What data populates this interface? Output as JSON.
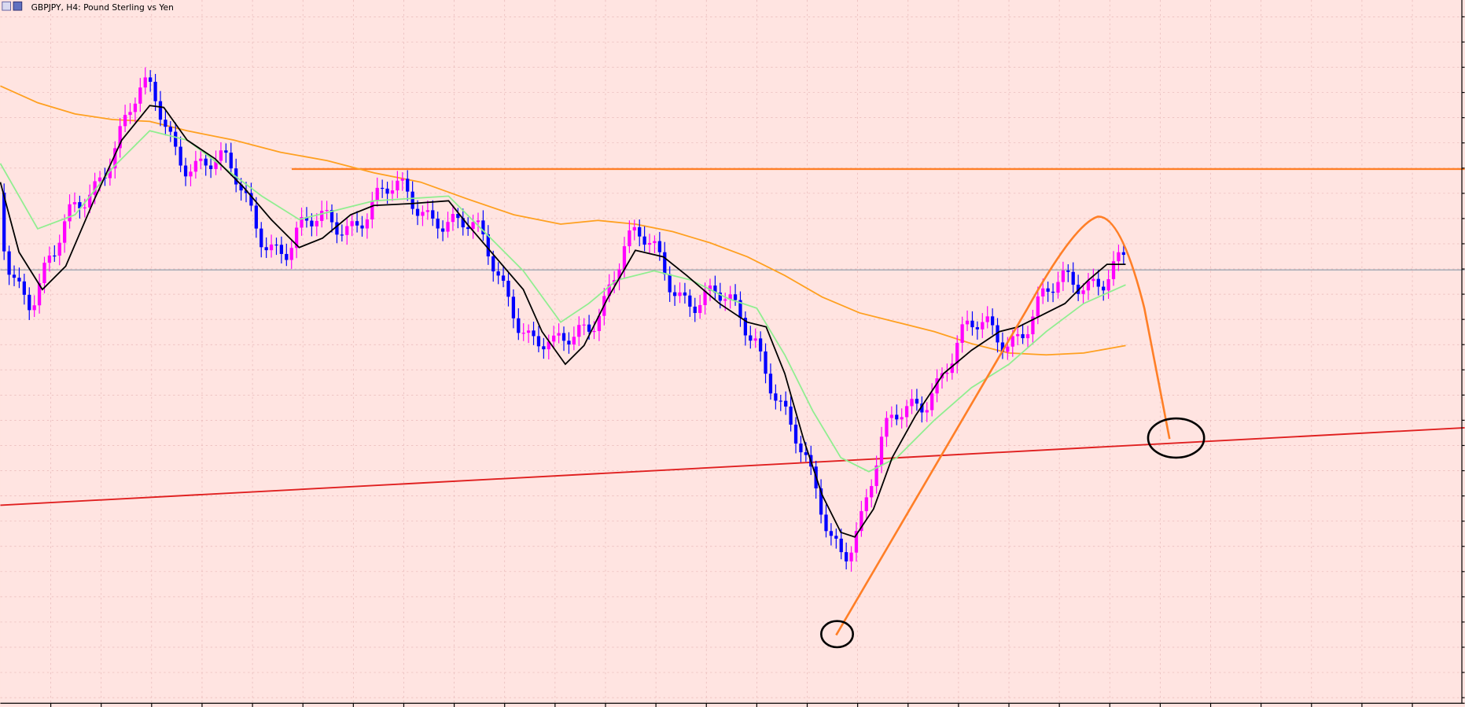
{
  "header": {
    "title": "GBPJPY, H4:  Pound Sterling vs Yen"
  }
}
